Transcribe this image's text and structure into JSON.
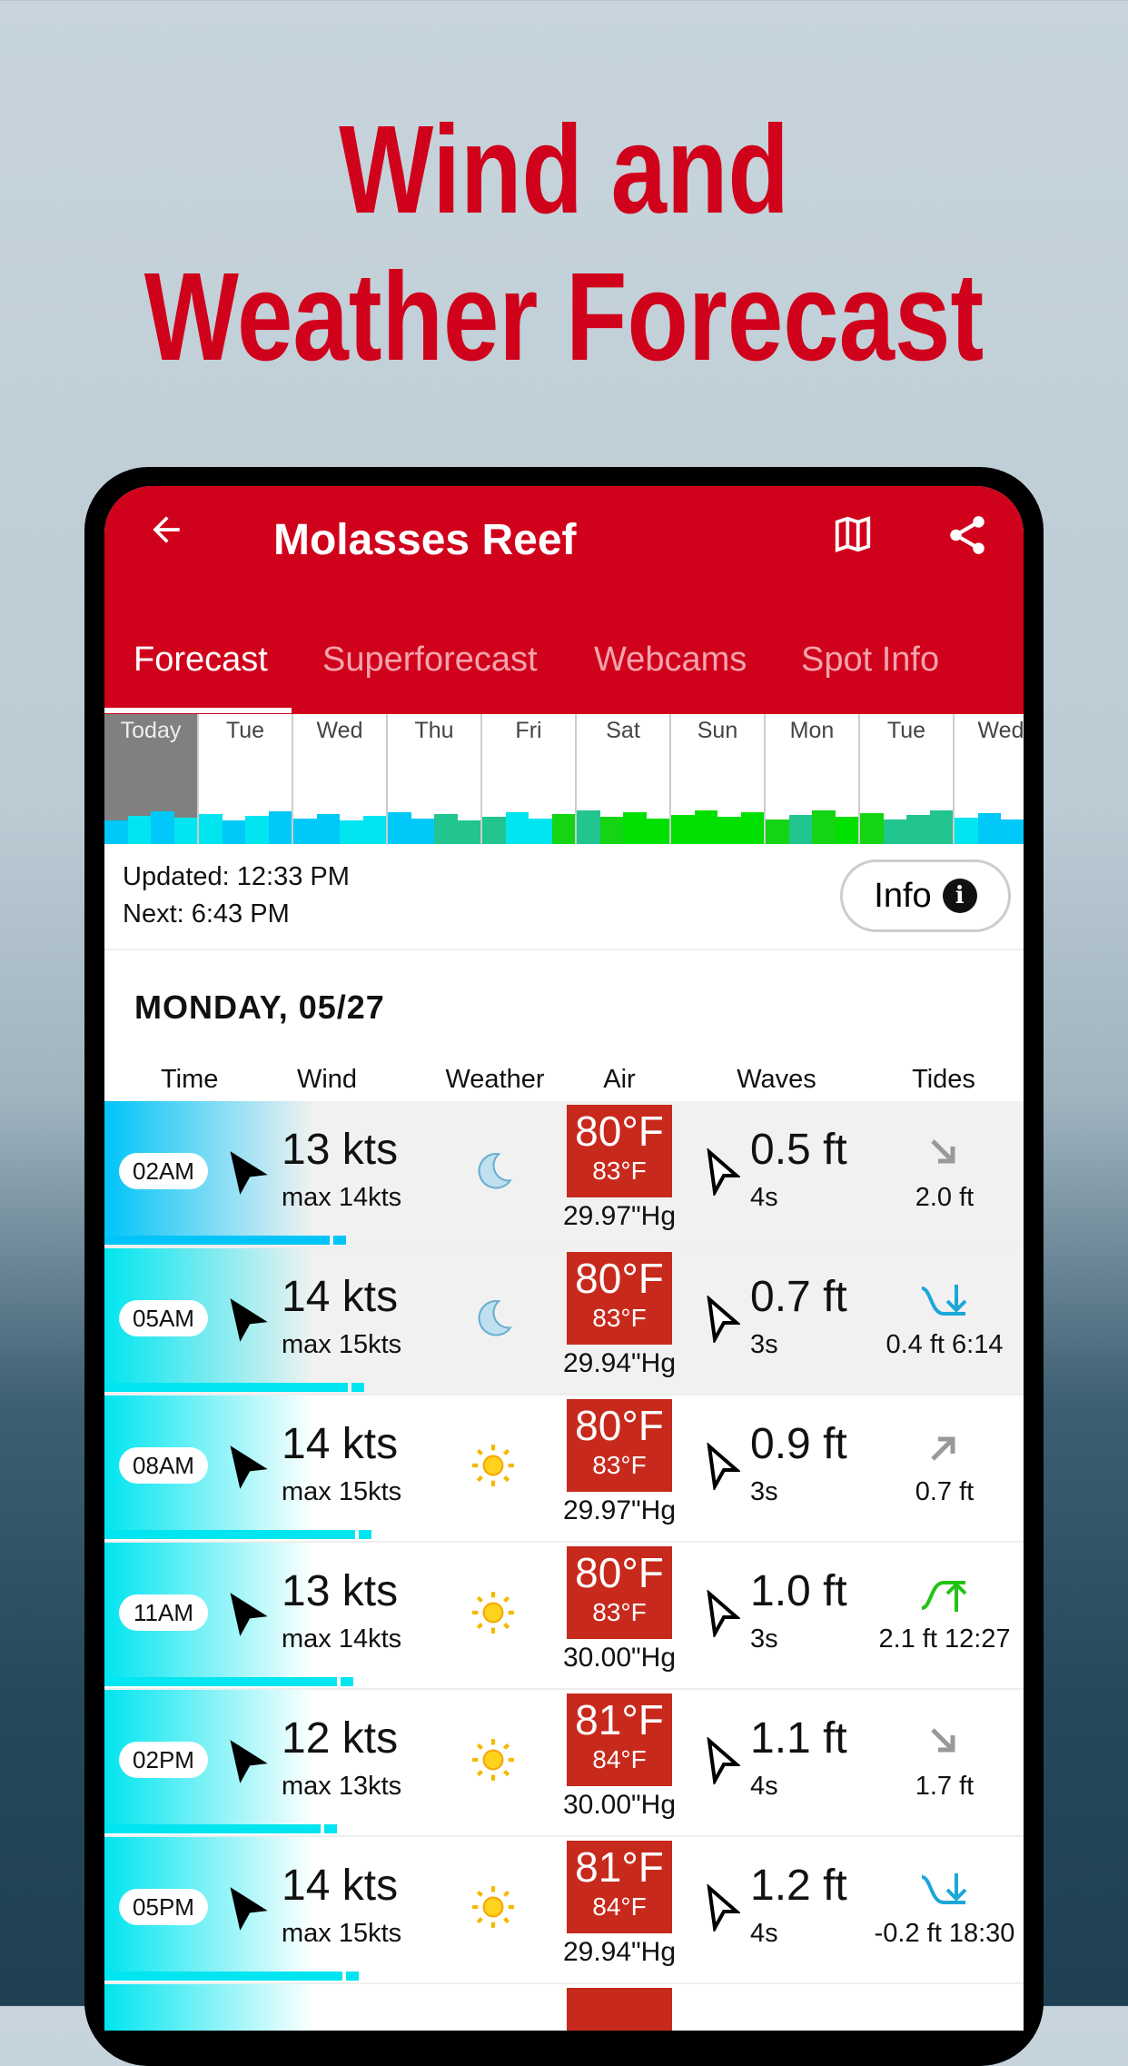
{
  "headline": {
    "line1": "Wind and",
    "line2": "Weather Forecast"
  },
  "app": {
    "title": "Molasses Reef",
    "back_icon": "arrow-left-icon",
    "map_icon": "map-icon",
    "share_icon": "share-icon",
    "accent": "#d0021b"
  },
  "tabs": [
    {
      "label": "Forecast",
      "active": true
    },
    {
      "label": "Superforecast"
    },
    {
      "label": "Webcams"
    },
    {
      "label": "Spot Info"
    }
  ],
  "days": [
    {
      "label": "Today",
      "colors": [
        "#00c8f8",
        "#00e5ef",
        "#00c8f8",
        "#00e5ef"
      ]
    },
    {
      "label": "Tue",
      "colors": [
        "#00e5ef",
        "#00c8f8",
        "#00e5ef",
        "#00c8f8"
      ]
    },
    {
      "label": "Wed",
      "colors": [
        "#00c8f8",
        "#00c8f8",
        "#00e5ef",
        "#00e5ef"
      ]
    },
    {
      "label": "Thu",
      "colors": [
        "#00c8f8",
        "#00c8f8",
        "#22c48f",
        "#22c48f"
      ]
    },
    {
      "label": "Fri",
      "colors": [
        "#22c48f",
        "#00e5ef",
        "#00e5ef",
        "#14d414"
      ]
    },
    {
      "label": "Sat",
      "colors": [
        "#22c48f",
        "#14d414",
        "#00e000",
        "#00e000"
      ]
    },
    {
      "label": "Sun",
      "colors": [
        "#00e000",
        "#00e000",
        "#00e000",
        "#00e000"
      ]
    },
    {
      "label": "Mon",
      "colors": [
        "#14d414",
        "#22c48f",
        "#14d414",
        "#00e000"
      ]
    },
    {
      "label": "Tue",
      "colors": [
        "#14d414",
        "#22c48f",
        "#22c48f",
        "#22c48f"
      ]
    },
    {
      "label": "Wed",
      "colors": [
        "#00e5ef",
        "#00c8f8",
        "#00c8f8",
        "#00c8f8"
      ]
    }
  ],
  "status": {
    "updated": "Updated: 12:33 PM",
    "next": "Next: 6:43 PM",
    "info_label": "Info"
  },
  "date_header": "MONDAY, 05/27",
  "columns": [
    "Time",
    "Wind",
    "Weather",
    "Air",
    "Waves",
    "Tides"
  ],
  "rows": [
    {
      "time": "02AM",
      "wind": "13 kts",
      "gust": "max 14kts",
      "weather": "moon",
      "air": "80°F",
      "feels": "83°F",
      "pressure": "29.97\"Hg",
      "waves": "0.5 ft",
      "period": "4s",
      "tide_icon": "arrow-down-right",
      "tide": "2.0 ft",
      "night": true,
      "wind_color": "#00c4f8"
    },
    {
      "time": "05AM",
      "wind": "14 kts",
      "gust": "max 15kts",
      "weather": "moon",
      "air": "80°F",
      "feels": "83°F",
      "pressure": "29.94\"Hg",
      "waves": "0.7 ft",
      "period": "3s",
      "tide_icon": "low-tide",
      "tide": "0.4 ft 6:14",
      "night": true,
      "wind_color": "#00e5ef"
    },
    {
      "time": "08AM",
      "wind": "14 kts",
      "gust": "max 15kts",
      "weather": "sun",
      "air": "80°F",
      "feels": "83°F",
      "pressure": "29.97\"Hg",
      "waves": "0.9 ft",
      "period": "3s",
      "tide_icon": "arrow-up-right",
      "tide": "0.7 ft",
      "night": false,
      "wind_color": "#00e5ef"
    },
    {
      "time": "11AM",
      "wind": "13 kts",
      "gust": "max 14kts",
      "weather": "sun",
      "air": "80°F",
      "feels": "83°F",
      "pressure": "30.00\"Hg",
      "waves": "1.0 ft",
      "period": "3s",
      "tide_icon": "high-tide",
      "tide": "2.1 ft 12:27",
      "night": false,
      "wind_color": "#00e5ef"
    },
    {
      "time": "02PM",
      "wind": "12 kts",
      "gust": "max 13kts",
      "weather": "sun",
      "air": "81°F",
      "feels": "84°F",
      "pressure": "30.00\"Hg",
      "waves": "1.1 ft",
      "period": "4s",
      "tide_icon": "arrow-down-right",
      "tide": "1.7 ft",
      "night": false,
      "wind_color": "#00e5ef"
    },
    {
      "time": "05PM",
      "wind": "14 kts",
      "gust": "max 15kts",
      "weather": "sun",
      "air": "81°F",
      "feels": "84°F",
      "pressure": "29.94\"Hg",
      "waves": "1.2 ft",
      "period": "4s",
      "tide_icon": "low-tide",
      "tide": "-0.2 ft 18:30",
      "night": false,
      "wind_color": "#00e5ef"
    }
  ]
}
